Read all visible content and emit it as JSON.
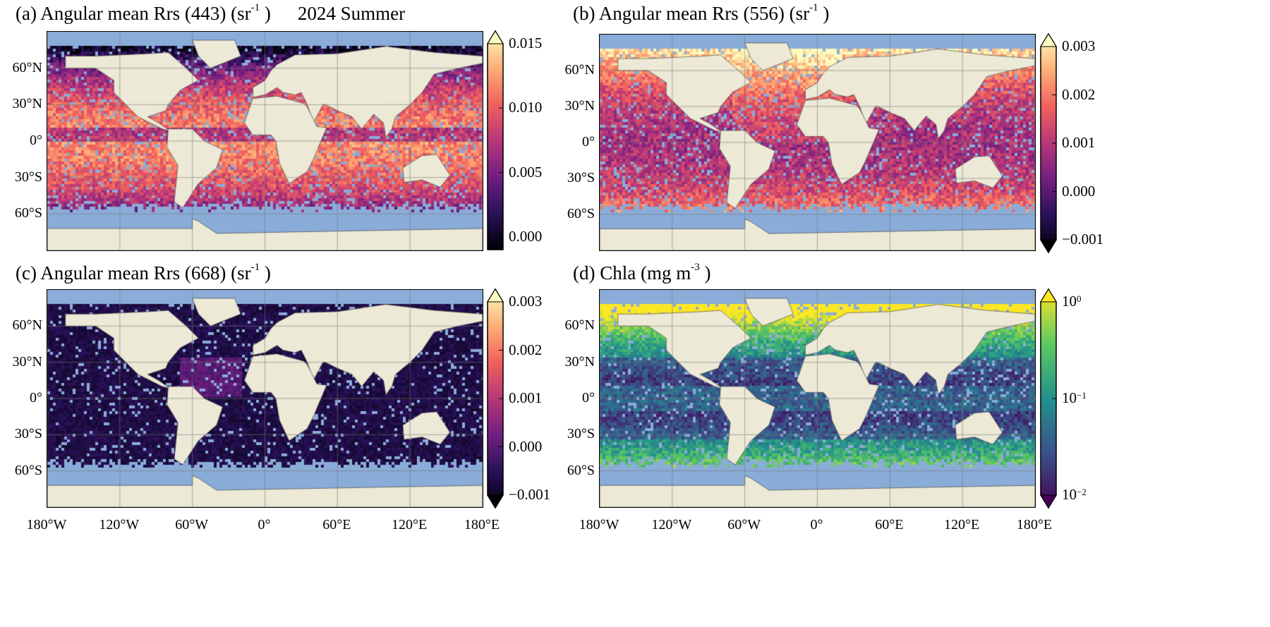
{
  "figure": {
    "panels": [
      {
        "id": "a",
        "title": "(a) Angular mean Rrs (443) (sr",
        "title_sup": "-1",
        "title_end": " )",
        "extra": "2024 Summer",
        "colormap": "magma",
        "colorbar": {
          "ticks": [
            "0.000",
            "0.005",
            "0.010",
            "0.015"
          ],
          "tick_values": [
            0,
            0.005,
            0.01,
            0.015
          ],
          "range": [
            -0.001,
            0.015
          ],
          "extend": "max"
        }
      },
      {
        "id": "b",
        "title": "(b) Angular mean Rrs (556) (sr",
        "title_sup": "-1",
        "title_end": " )",
        "colormap": "magma",
        "colorbar": {
          "ticks": [
            "−0.001",
            "0.000",
            "0.001",
            "0.002",
            "0.003"
          ],
          "tick_values": [
            -0.001,
            0,
            0.001,
            0.002,
            0.003
          ],
          "range": [
            -0.001,
            0.003
          ],
          "extend": "both"
        }
      },
      {
        "id": "c",
        "title": "(c) Angular mean Rrs (668) (sr",
        "title_sup": "-1",
        "title_end": " )",
        "colormap": "magma",
        "colorbar": {
          "ticks": [
            "−0.001",
            "0.000",
            "0.001",
            "0.002",
            "0.003"
          ],
          "tick_values": [
            -0.001,
            0,
            0.001,
            0.002,
            0.003
          ],
          "range": [
            -0.001,
            0.003
          ],
          "extend": "both"
        }
      },
      {
        "id": "d",
        "title": "(d) Chla (mg m",
        "title_sup": "-3",
        "title_end": " )",
        "colormap": "viridis",
        "colorbar": {
          "ticks_base": "10",
          "ticks_exp": [
            "−2",
            "−1",
            "0"
          ],
          "tick_values": [
            0.01,
            0.1,
            1
          ],
          "range": [
            0.01,
            1
          ],
          "scale": "log",
          "extend": "both"
        }
      }
    ],
    "lat_labels": [
      "60°N",
      "30°N",
      "0°",
      "30°S",
      "60°S"
    ],
    "lat_values": [
      60,
      30,
      0,
      -30,
      -60
    ],
    "lon_labels": [
      "180°W",
      "120°W",
      "60°W",
      "0°",
      "60°E",
      "120°E",
      "180°E"
    ],
    "lon_values": [
      -180,
      -120,
      -60,
      0,
      60,
      120,
      180
    ],
    "colors": {
      "ocean": "#8aacd8",
      "land": "#ece9d6",
      "grid": "#999999"
    }
  },
  "chart_data": [
    {
      "type": "heatmap",
      "title": "(a) Angular mean Rrs (443) (sr-1)",
      "annotation": "2024 Summer",
      "colorbar_range": [
        -0.001,
        0.015
      ],
      "colorbar_ticks": [
        0,
        0.005,
        0.01,
        0.015
      ],
      "colormap": "magma",
      "grid": true
    },
    {
      "type": "heatmap",
      "title": "(b) Angular mean Rrs (556) (sr-1)",
      "colorbar_range": [
        -0.001,
        0.003
      ],
      "colorbar_ticks": [
        -0.001,
        0,
        0.001,
        0.002,
        0.003
      ],
      "colormap": "magma",
      "grid": true
    },
    {
      "type": "heatmap",
      "title": "(c) Angular mean Rrs (668) (sr-1)",
      "colorbar_range": [
        -0.001,
        0.003
      ],
      "colorbar_ticks": [
        -0.001,
        0,
        0.001,
        0.002,
        0.003
      ],
      "colormap": "magma",
      "grid": true
    },
    {
      "type": "heatmap",
      "title": "(d) Chla (mg m-3)",
      "colorbar_range": [
        0.01,
        1
      ],
      "colorbar_scale": "log",
      "colorbar_ticks": [
        0.01,
        0.1,
        1
      ],
      "colormap": "viridis",
      "grid": true
    }
  ]
}
